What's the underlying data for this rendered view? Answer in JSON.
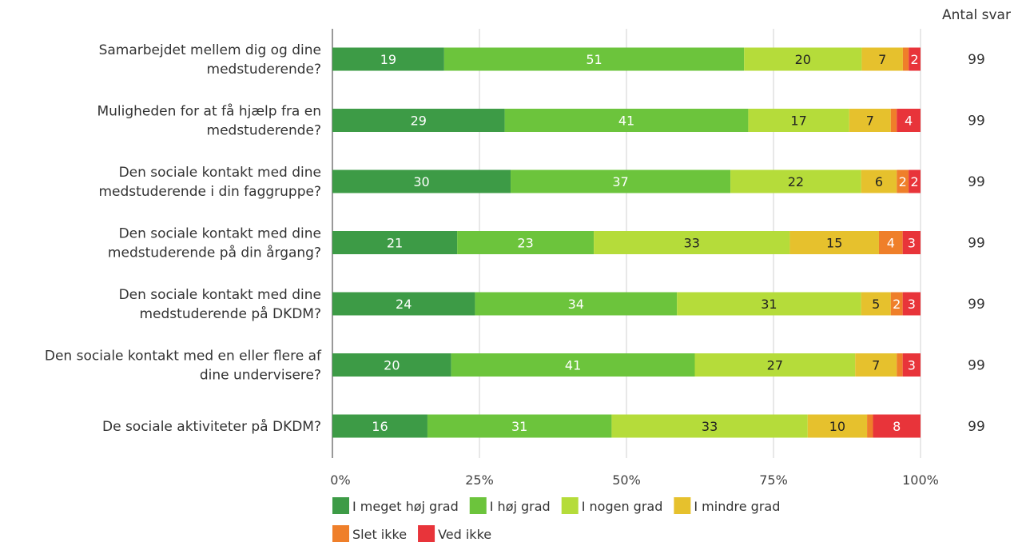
{
  "chart_data": {
    "type": "bar",
    "orientation": "horizontal",
    "stacked": true,
    "categories": [
      [
        "Samarbejdet mellem dig og dine",
        "medstuderende?"
      ],
      [
        "Muligheden for at få hjælp fra en",
        "medstuderende?"
      ],
      [
        "Den sociale kontakt med dine",
        "medstuderende i din faggruppe?"
      ],
      [
        "Den sociale kontakt med dine",
        "medstuderende på din årgang?"
      ],
      [
        "Den sociale kontakt med dine",
        "medstuderende på DKDM?"
      ],
      [
        "Den sociale kontakt med en eller flere af",
        "dine undervisere?"
      ],
      [
        "De sociale aktiviteter på DKDM?"
      ]
    ],
    "series": [
      {
        "name": "I meget høj grad",
        "color": "#3d9b46",
        "values": [
          19,
          29,
          30,
          21,
          24,
          20,
          16
        ]
      },
      {
        "name": "I høj grad",
        "color": "#6cc43c",
        "values": [
          51,
          41,
          37,
          23,
          34,
          41,
          31
        ]
      },
      {
        "name": "I nogen grad",
        "color": "#b5dc3a",
        "values": [
          20,
          17,
          22,
          33,
          31,
          27,
          33
        ]
      },
      {
        "name": "I mindre grad",
        "color": "#e6c12d",
        "values": [
          7,
          7,
          6,
          15,
          5,
          7,
          10
        ]
      },
      {
        "name": "Slet ikke",
        "color": "#ef7f2a",
        "values": [
          1,
          1,
          2,
          4,
          2,
          1,
          1
        ]
      },
      {
        "name": "Ved ikke",
        "color": "#e8343a",
        "values": [
          2,
          4,
          2,
          3,
          3,
          3,
          8
        ]
      }
    ],
    "xlim": [
      0,
      100
    ],
    "xticks": [
      "0%",
      "25%",
      "50%",
      "75%",
      "100%"
    ],
    "grid": true,
    "legend_position": "bottom",
    "right_column": {
      "header": "Antal svar",
      "values": [
        "99",
        "99",
        "99",
        "99",
        "99",
        "99",
        "99"
      ]
    }
  }
}
